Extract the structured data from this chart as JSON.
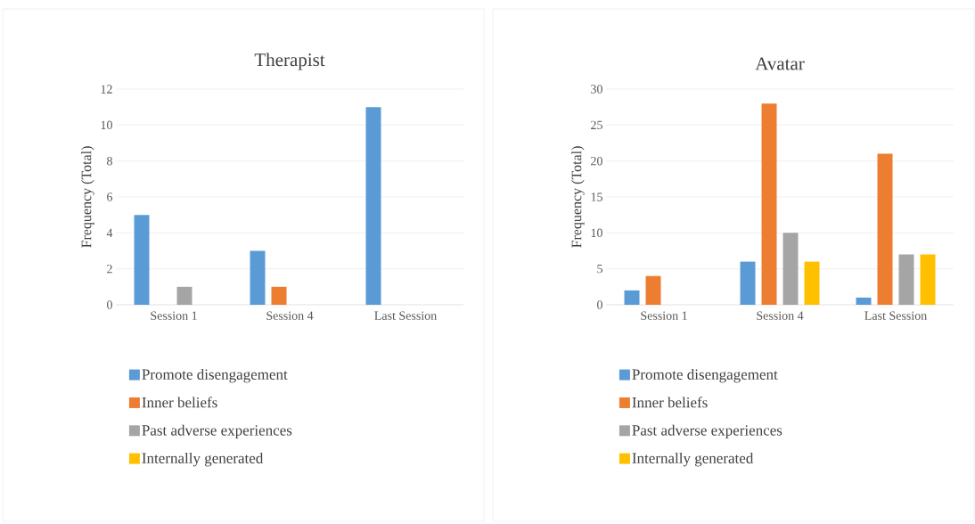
{
  "chart_data": [
    {
      "type": "bar",
      "title": "Therapist",
      "ylabel": "Frequency (Total)",
      "categories": [
        "Session 1",
        "Session 4",
        "Last Session"
      ],
      "ylim": [
        0,
        12
      ],
      "yticks": [
        0,
        2,
        4,
        6,
        8,
        10,
        12
      ],
      "grid": "y",
      "legend": "bottom",
      "series": [
        {
          "name": "Promote disengagement",
          "color": "#5b9bd5",
          "values": [
            5,
            3,
            11
          ]
        },
        {
          "name": "Inner beliefs",
          "color": "#ed7d31",
          "values": [
            0,
            1,
            0
          ]
        },
        {
          "name": "Past adverse experiences",
          "color": "#a5a5a5",
          "values": [
            1,
            0,
            0
          ]
        },
        {
          "name": "Internally generated",
          "color": "#ffc000",
          "values": [
            0,
            0,
            0
          ]
        }
      ]
    },
    {
      "type": "bar",
      "title": "Avatar",
      "ylabel": "Frequency (Total)",
      "categories": [
        "Session 1",
        "Session 4",
        "Last Session"
      ],
      "ylim": [
        0,
        30
      ],
      "yticks": [
        0,
        5,
        10,
        15,
        20,
        25,
        30
      ],
      "grid": "y",
      "legend": "bottom",
      "series": [
        {
          "name": "Promote disengagement",
          "color": "#5b9bd5",
          "values": [
            2,
            6,
            1
          ]
        },
        {
          "name": "Inner beliefs",
          "color": "#ed7d31",
          "values": [
            4,
            28,
            21
          ]
        },
        {
          "name": "Past adverse experiences",
          "color": "#a5a5a5",
          "values": [
            0,
            10,
            7
          ]
        },
        {
          "name": "Internally generated",
          "color": "#ffc000",
          "values": [
            0,
            6,
            7
          ]
        }
      ]
    }
  ]
}
